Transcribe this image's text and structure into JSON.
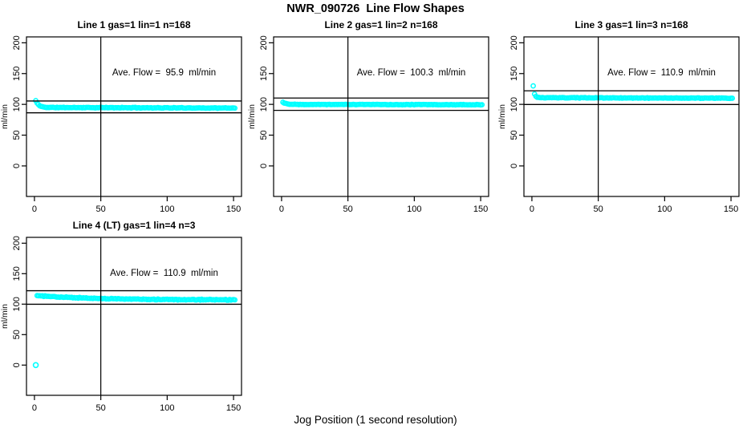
{
  "page": {
    "main_title": "NWR_090726  Line Flow Shapes",
    "x_axis_label": "Jog Position (1 second resolution)"
  },
  "colors": {
    "point": "#00ffff",
    "axis": "#000000",
    "background": "#ffffff"
  },
  "chart_data": [
    {
      "type": "scatter",
      "title": "Line 1 gas=1 lin=1 n=168",
      "ylabel": "ml/min",
      "annotation": "Ave. Flow =  95.9  ml/min",
      "ave_flow_ml_min": 95.9,
      "n": 168,
      "x_ticks": [
        0,
        50,
        100,
        150
      ],
      "y_ticks": [
        0,
        50,
        100,
        150,
        200
      ],
      "xlim": [
        -6,
        156
      ],
      "ylim": [
        -49.6,
        209.6
      ],
      "grid": false,
      "vline_x": 50,
      "hlines": [
        105.5,
        86.3
      ],
      "series": [
        {
          "name": "flow",
          "shape": {
            "x_start": 1,
            "x_end": 151,
            "base": 95.0,
            "spike": 11.0,
            "decay": 2.2,
            "drift": -1.0,
            "noise": 0.7,
            "seed": 11
          },
          "outliers": []
        }
      ]
    },
    {
      "type": "scatter",
      "title": "Line 2 gas=1 lin=2 n=168",
      "ylabel": "ml/min",
      "annotation": "Ave. Flow =  100.3  ml/min",
      "ave_flow_ml_min": 100.3,
      "n": 168,
      "x_ticks": [
        0,
        50,
        100,
        150
      ],
      "y_ticks": [
        0,
        50,
        100,
        150,
        200
      ],
      "xlim": [
        -6,
        156
      ],
      "ylim": [
        -49.6,
        209.6
      ],
      "grid": false,
      "vline_x": 50,
      "hlines": [
        110.3,
        90.3
      ],
      "series": [
        {
          "name": "flow",
          "shape": {
            "x_start": 1,
            "x_end": 151,
            "base": 100.0,
            "spike": 3.5,
            "decay": 2.5,
            "drift": -0.6,
            "noise": 0.55,
            "seed": 22
          },
          "outliers": []
        }
      ]
    },
    {
      "type": "scatter",
      "title": "Line 3 gas=1 lin=3 n=168",
      "ylabel": "ml/min",
      "annotation": "Ave. Flow =  110.9  ml/min",
      "ave_flow_ml_min": 110.9,
      "n": 168,
      "x_ticks": [
        0,
        50,
        100,
        150
      ],
      "y_ticks": [
        0,
        50,
        100,
        150,
        200
      ],
      "xlim": [
        -6,
        156
      ],
      "ylim": [
        -49.6,
        209.6
      ],
      "grid": false,
      "vline_x": 50,
      "hlines": [
        122.0,
        99.8
      ],
      "series": [
        {
          "name": "flow",
          "shape": {
            "x_start": 1,
            "x_end": 151,
            "base": 110.8,
            "spike": 19.0,
            "decay": 0.9,
            "drift": -0.8,
            "noise": 0.6,
            "seed": 33
          },
          "outliers": []
        }
      ]
    },
    {
      "type": "scatter",
      "title": "Line 4 (LT) gas=1 lin=4 n=3",
      "ylabel": "ml/min",
      "annotation": "Ave. Flow =  110.9  ml/min",
      "ave_flow_ml_min": 110.9,
      "n": 3,
      "x_ticks": [
        0,
        50,
        100,
        150
      ],
      "y_ticks": [
        0,
        50,
        100,
        150,
        200
      ],
      "xlim": [
        -6,
        156
      ],
      "ylim": [
        -49.6,
        209.6
      ],
      "grid": false,
      "vline_x": 50,
      "hlines": [
        122.0,
        99.8
      ],
      "series": [
        {
          "name": "flow",
          "shape": {
            "x_start": 2,
            "x_end": 151,
            "base": 106.8,
            "spike": 7.2,
            "decay": 45.0,
            "drift": 0.0,
            "noise": 0.9,
            "seed": 44
          },
          "outliers": [
            [
              1,
              0
            ]
          ]
        }
      ]
    }
  ]
}
